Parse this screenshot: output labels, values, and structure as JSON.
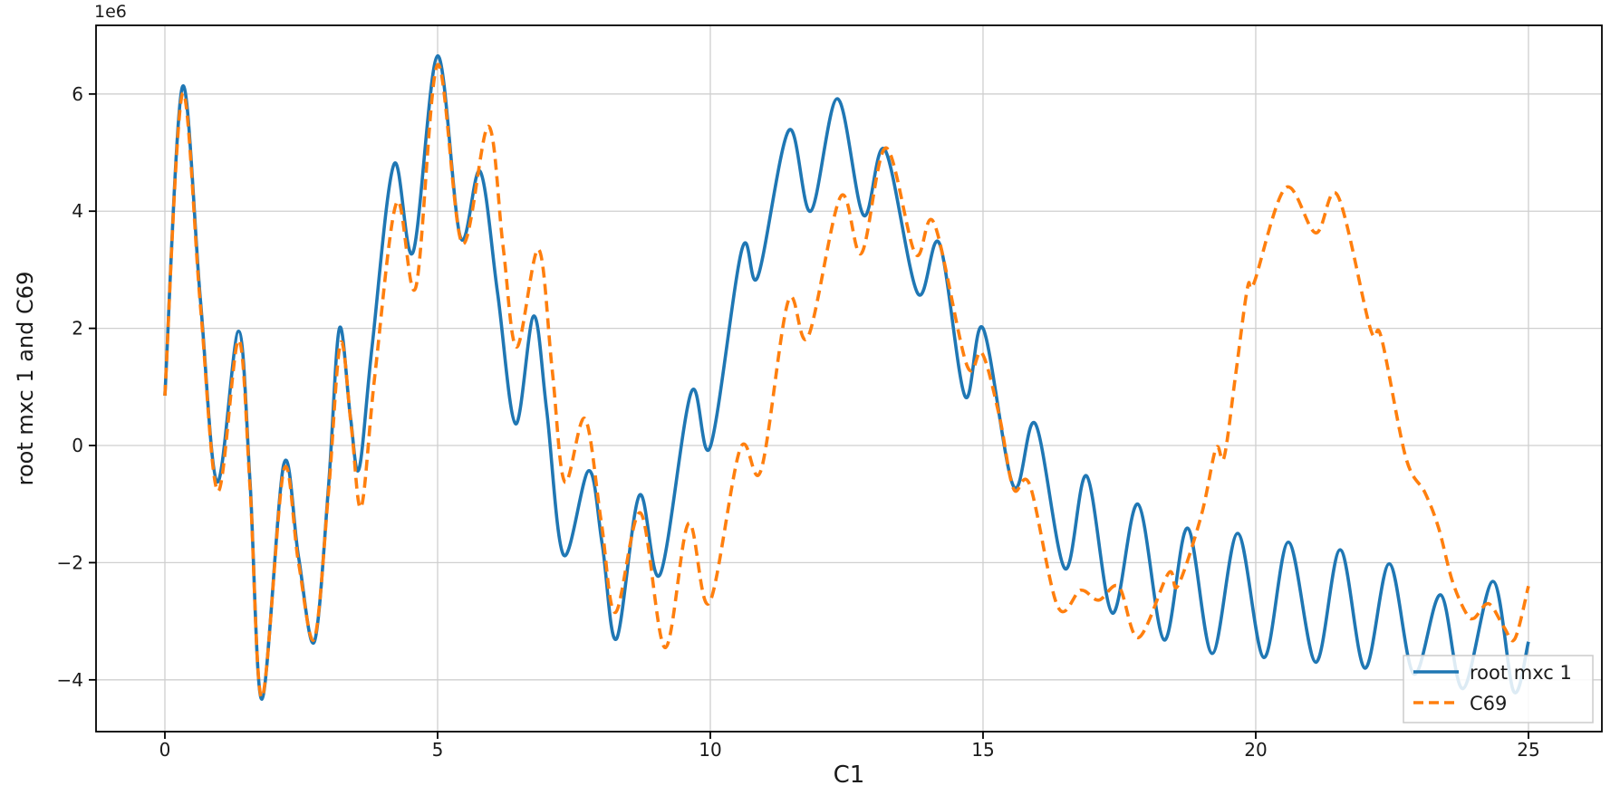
{
  "figure": {
    "offset_text": "1e6",
    "xlabel": "C1",
    "ylabel": "root mxc 1 and C69",
    "background": "#ffffff",
    "grid_color": "#cfcfcf",
    "spine_color": "#000000"
  },
  "legend": {
    "entries": [
      {
        "label": "root mxc 1",
        "color": "#1f77b4",
        "style": "solid"
      },
      {
        "label": "C69",
        "color": "#ff7f0e",
        "style": "dashed"
      }
    ]
  },
  "chart_data": {
    "type": "line",
    "title": "",
    "xlabel": "C1",
    "ylabel": "root mxc 1 and C69",
    "y_scale_factor": "1e6",
    "grid": true,
    "legend_position": "lower right",
    "x_range": [
      -1.2623,
      26.346
    ],
    "y_range": [
      -4.884,
      7.172
    ],
    "x_ticks": [
      0,
      5,
      10,
      15,
      20,
      25
    ],
    "x_tick_labels": [
      "0",
      "5",
      "10",
      "15",
      "20",
      "25"
    ],
    "y_ticks": [
      -4,
      -2,
      0,
      2,
      4,
      6
    ],
    "y_tick_labels": [
      "−4",
      "−2",
      "0",
      "2",
      "4",
      "6"
    ],
    "series": [
      {
        "name": "root mxc 1",
        "color": "#1f77b4",
        "style": "solid",
        "points": [
          [
            0,
            0.85
          ],
          [
            0.32,
            6.12
          ],
          [
            0.65,
            2.5
          ],
          [
            0.96,
            -0.62
          ],
          [
            1.35,
            1.95
          ],
          [
            1.56,
            -0.6
          ],
          [
            1.78,
            -4.33
          ],
          [
            2.18,
            -0.32
          ],
          [
            2.45,
            -1.9
          ],
          [
            2.74,
            -3.35
          ],
          [
            3.0,
            -0.7
          ],
          [
            3.2,
            2.0
          ],
          [
            3.4,
            0.5
          ],
          [
            3.56,
            -0.4
          ],
          [
            3.8,
            1.7
          ],
          [
            4.2,
            4.8
          ],
          [
            4.55,
            3.3
          ],
          [
            5.0,
            6.65
          ],
          [
            5.42,
            3.55
          ],
          [
            5.78,
            4.68
          ],
          [
            6.1,
            2.6
          ],
          [
            6.43,
            0.37
          ],
          [
            6.76,
            2.21
          ],
          [
            7.0,
            0.6
          ],
          [
            7.31,
            -1.87
          ],
          [
            7.77,
            -0.43
          ],
          [
            8.02,
            -1.7
          ],
          [
            8.28,
            -3.3
          ],
          [
            8.7,
            -0.85
          ],
          [
            9.08,
            -2.2
          ],
          [
            9.65,
            0.91
          ],
          [
            10.0,
            -0.02
          ],
          [
            10.58,
            3.35
          ],
          [
            10.87,
            2.88
          ],
          [
            11.44,
            5.38
          ],
          [
            11.84,
            4.0
          ],
          [
            12.33,
            5.92
          ],
          [
            12.81,
            3.93
          ],
          [
            13.2,
            5.05
          ],
          [
            13.8,
            2.6
          ],
          [
            14.2,
            3.45
          ],
          [
            14.67,
            0.84
          ],
          [
            15.0,
            2.0
          ],
          [
            15.56,
            -0.7
          ],
          [
            15.96,
            0.37
          ],
          [
            16.5,
            -2.1
          ],
          [
            16.9,
            -0.52
          ],
          [
            17.37,
            -2.86
          ],
          [
            17.84,
            -1.0
          ],
          [
            18.32,
            -3.32
          ],
          [
            18.75,
            -1.41
          ],
          [
            19.2,
            -3.55
          ],
          [
            19.67,
            -1.5
          ],
          [
            20.15,
            -3.62
          ],
          [
            20.6,
            -1.65
          ],
          [
            21.1,
            -3.7
          ],
          [
            21.55,
            -1.78
          ],
          [
            22.0,
            -3.8
          ],
          [
            22.45,
            -2.02
          ],
          [
            22.9,
            -3.9
          ],
          [
            23.39,
            -2.55
          ],
          [
            23.8,
            -4.15
          ],
          [
            24.35,
            -2.32
          ],
          [
            24.73,
            -4.2
          ],
          [
            25.0,
            -3.35
          ]
        ]
      },
      {
        "name": "C69",
        "color": "#ff7f0e",
        "style": "dashed",
        "points": [
          [
            0,
            0.85
          ],
          [
            0.32,
            6.0
          ],
          [
            0.65,
            2.4
          ],
          [
            0.97,
            -0.78
          ],
          [
            1.35,
            1.8
          ],
          [
            1.56,
            -0.7
          ],
          [
            1.78,
            -4.3
          ],
          [
            2.18,
            -0.42
          ],
          [
            2.45,
            -2.0
          ],
          [
            2.74,
            -3.3
          ],
          [
            3.0,
            -0.8
          ],
          [
            3.22,
            1.75
          ],
          [
            3.42,
            0.3
          ],
          [
            3.6,
            -1.05
          ],
          [
            3.85,
            1.2
          ],
          [
            4.25,
            4.15
          ],
          [
            4.6,
            2.7
          ],
          [
            5.0,
            6.5
          ],
          [
            5.45,
            3.45
          ],
          [
            5.93,
            5.45
          ],
          [
            6.2,
            3.4
          ],
          [
            6.45,
            1.68
          ],
          [
            6.85,
            3.35
          ],
          [
            7.1,
            1.3
          ],
          [
            7.33,
            -0.62
          ],
          [
            7.7,
            0.46
          ],
          [
            8.0,
            -1.3
          ],
          [
            8.26,
            -2.85
          ],
          [
            8.72,
            -1.15
          ],
          [
            9.17,
            -3.45
          ],
          [
            9.6,
            -1.33
          ],
          [
            9.98,
            -2.69
          ],
          [
            10.55,
            -0.05
          ],
          [
            10.93,
            -0.42
          ],
          [
            11.43,
            2.47
          ],
          [
            11.79,
            1.85
          ],
          [
            12.39,
            4.25
          ],
          [
            12.77,
            3.28
          ],
          [
            13.22,
            5.08
          ],
          [
            13.76,
            3.27
          ],
          [
            14.1,
            3.8
          ],
          [
            14.7,
            1.38
          ],
          [
            14.98,
            1.58
          ],
          [
            15.3,
            0.5
          ],
          [
            15.56,
            -0.74
          ],
          [
            15.86,
            -0.68
          ],
          [
            16.37,
            -2.75
          ],
          [
            16.79,
            -2.47
          ],
          [
            17.12,
            -2.64
          ],
          [
            17.49,
            -2.41
          ],
          [
            17.85,
            -3.28
          ],
          [
            18.4,
            -2.18
          ],
          [
            18.57,
            -2.4
          ],
          [
            19.0,
            -1.2
          ],
          [
            19.27,
            -0.05
          ],
          [
            19.42,
            -0.2
          ],
          [
            19.63,
            1.2
          ],
          [
            19.85,
            2.7
          ],
          [
            19.97,
            2.78
          ],
          [
            20.55,
            4.4
          ],
          [
            21.1,
            3.63
          ],
          [
            21.5,
            4.27
          ],
          [
            22.1,
            2.0
          ],
          [
            22.3,
            1.85
          ],
          [
            22.75,
            -0.2
          ],
          [
            23.1,
            -0.8
          ],
          [
            23.35,
            -1.4
          ],
          [
            23.6,
            -2.3
          ],
          [
            23.85,
            -2.85
          ],
          [
            24.0,
            -2.95
          ],
          [
            24.27,
            -2.7
          ],
          [
            24.55,
            -3.1
          ],
          [
            24.75,
            -3.3
          ],
          [
            25.0,
            -2.4
          ]
        ]
      }
    ]
  }
}
